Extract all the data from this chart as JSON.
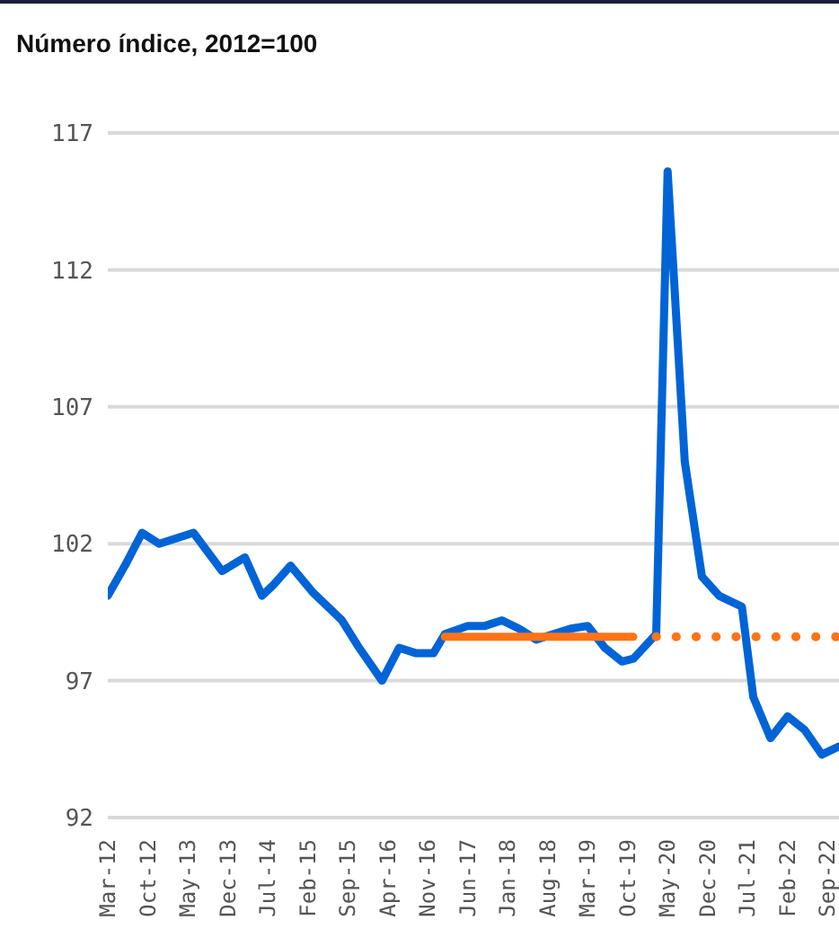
{
  "chart_data": {
    "type": "line",
    "title": "Número índice, 2012=100",
    "x": [
      "2012-03",
      "2012-06",
      "2012-09",
      "2012-12",
      "2013-06",
      "2013-11",
      "2014-03",
      "2014-06",
      "2014-08",
      "2014-11",
      "2015-03",
      "2015-06",
      "2015-08",
      "2015-11",
      "2016-03",
      "2016-06",
      "2016-09",
      "2016-12",
      "2017-02",
      "2017-06",
      "2017-09",
      "2017-12",
      "2018-03",
      "2018-06",
      "2018-09",
      "2018-12",
      "2019-03",
      "2019-06",
      "2019-09",
      "2019-11",
      "2020-03",
      "2020-05",
      "2020-08",
      "2020-11",
      "2021-02",
      "2021-06",
      "2021-08",
      "2021-11",
      "2022-02",
      "2022-05",
      "2022-08",
      "2022-11"
    ],
    "series": [
      {
        "color": "#0064d7",
        "line_style": "solid",
        "values": [
          100.1,
          101.2,
          102.4,
          102.0,
          102.4,
          101.0,
          101.5,
          100.1,
          100.5,
          101.2,
          100.2,
          99.6,
          99.2,
          98.2,
          97.0,
          98.2,
          98.0,
          98.0,
          98.7,
          99.0,
          99.0,
          99.2,
          98.9,
          98.5,
          98.7,
          98.9,
          99.0,
          98.2,
          97.7,
          97.8,
          98.7,
          115.6,
          105.0,
          100.8,
          100.1,
          99.7,
          96.4,
          94.9,
          95.7,
          95.2,
          94.3,
          94.6
        ]
      },
      {
        "color": "#ff7417",
        "line_style": "solid",
        "x": [
          "2017-02",
          "2019-11"
        ],
        "values": [
          98.6,
          98.6
        ]
      },
      {
        "color": "#ff7417",
        "line_style": "dotted",
        "x": [
          "2020-03",
          "2022-11"
        ],
        "values": [
          98.6,
          98.6
        ]
      }
    ],
    "xlim": [
      "2012-03",
      "2022-11"
    ],
    "xticks": [
      {
        "value": "2012-03",
        "label": "Mar-12"
      },
      {
        "value": "2012-10",
        "label": "Oct-12"
      },
      {
        "value": "2013-05",
        "label": "May-13"
      },
      {
        "value": "2013-12",
        "label": "Dec-13"
      },
      {
        "value": "2014-07",
        "label": "Jul-14"
      },
      {
        "value": "2015-02",
        "label": "Feb-15"
      },
      {
        "value": "2015-09",
        "label": "Sep-15"
      },
      {
        "value": "2016-04",
        "label": "Apr-16"
      },
      {
        "value": "2016-11",
        "label": "Nov-16"
      },
      {
        "value": "2017-06",
        "label": "Jun-17"
      },
      {
        "value": "2018-01",
        "label": "Jan-18"
      },
      {
        "value": "2018-08",
        "label": "Aug-18"
      },
      {
        "value": "2019-03",
        "label": "Mar-19"
      },
      {
        "value": "2019-10",
        "label": "Oct-19"
      },
      {
        "value": "2020-05",
        "label": "May-20"
      },
      {
        "value": "2020-12",
        "label": "Dec-20"
      },
      {
        "value": "2021-07",
        "label": "Jul-21"
      },
      {
        "value": "2022-02",
        "label": "Feb-22"
      },
      {
        "value": "2022-09",
        "label": "Sep-22"
      }
    ],
    "ylim": [
      92,
      117
    ],
    "yticks": [
      92,
      97,
      102,
      107,
      112,
      117
    ],
    "grid": "y",
    "marker": "none"
  }
}
